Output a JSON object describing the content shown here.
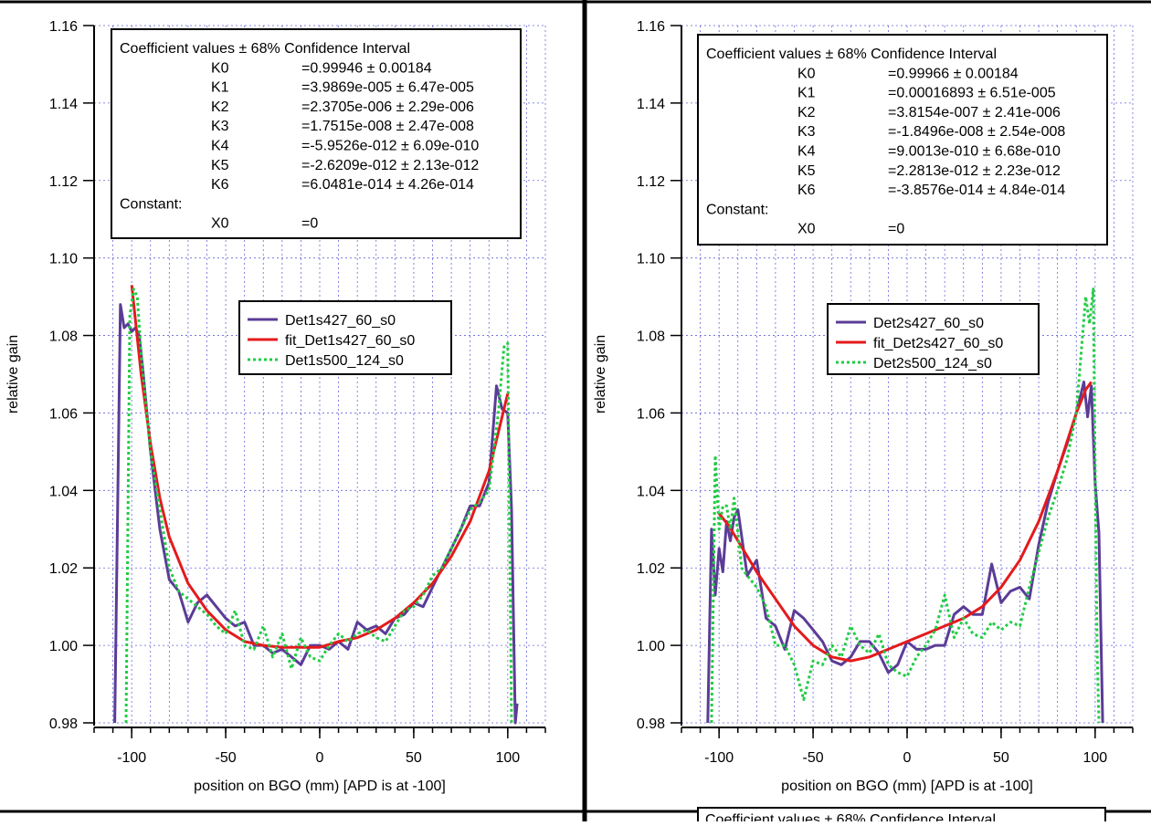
{
  "chart_data": [
    {
      "type": "line",
      "x_label": "position on BGO (mm) [APD is at -100]",
      "y_label": "relative gain",
      "xlim": [
        -120,
        120
      ],
      "ylim": [
        0.98,
        1.16
      ],
      "xticks": [
        -100,
        -50,
        0,
        50,
        100
      ],
      "xminorticks": [
        -120,
        -110,
        -100,
        -90,
        -80,
        -70,
        -60,
        -50,
        -40,
        -30,
        -20,
        -10,
        0,
        10,
        20,
        30,
        40,
        50,
        60,
        70,
        80,
        90,
        100,
        110,
        120
      ],
      "yticks": [
        0.98,
        {
          "value": 1.0,
          "label": "1.00"
        },
        1.02,
        1.04,
        1.06,
        1.08,
        {
          "value": 1.1,
          "label": "1.10"
        },
        1.12,
        1.14,
        1.16
      ],
      "grid": true,
      "fit_box": {
        "title": "Coefficient values ± 68% Confidence Interval",
        "rows": [
          {
            "name": "K0",
            "value": "=0.99946 ± 0.00184"
          },
          {
            "name": "K1",
            "value": "=3.9869e-005 ± 6.47e-005"
          },
          {
            "name": "K2",
            "value": "=2.3705e-006 ± 2.29e-006"
          },
          {
            "name": "K3",
            "value": "=1.7515e-008 ± 2.47e-008"
          },
          {
            "name": "K4",
            "value": "=-5.9526e-012 ± 6.09e-010"
          },
          {
            "name": "K5",
            "value": "=-2.6209e-012 ± 2.13e-012"
          },
          {
            "name": "K6",
            "value": "=6.0481e-014 ± 4.26e-014"
          }
        ],
        "constant_label": "Constant:",
        "constant_rows": [
          {
            "name": "X0",
            "value": "=0"
          }
        ]
      },
      "series": [
        {
          "name": "Det1s427_60_s0",
          "color": "#5b3c96",
          "line_style": "solid",
          "x": [
            -109,
            -106,
            -104,
            -102,
            -100,
            -98,
            -96,
            -94,
            -90,
            -85,
            -80,
            -75,
            -70,
            -65,
            -60,
            -55,
            -50,
            -45,
            -40,
            -35,
            -30,
            -25,
            -20,
            -15,
            -10,
            -5,
            0,
            5,
            10,
            15,
            20,
            25,
            30,
            35,
            40,
            45,
            50,
            55,
            60,
            65,
            70,
            75,
            80,
            85,
            90,
            94,
            97,
            100,
            102,
            104,
            105
          ],
          "values": [
            0.98,
            1.088,
            1.082,
            1.083,
            1.081,
            1.082,
            1.08,
            1.071,
            1.05,
            1.03,
            1.017,
            1.014,
            1.006,
            1.011,
            1.013,
            1.01,
            1.007,
            1.005,
            1.006,
            1.0,
            1.0,
            0.998,
            0.999,
            0.997,
            0.995,
            1.0,
            1.0,
            0.999,
            1.001,
            0.999,
            1.006,
            1.004,
            1.005,
            1.003,
            1.007,
            1.008,
            1.011,
            1.01,
            1.015,
            1.02,
            1.025,
            1.03,
            1.036,
            1.036,
            1.042,
            1.067,
            1.061,
            1.06,
            1.035,
            0.98,
            0.985
          ]
        },
        {
          "name": "fit_Det1s427_60_s0",
          "color": "#e41a1c",
          "line_style": "solid",
          "x": [
            -100,
            -95,
            -90,
            -85,
            -80,
            -70,
            -60,
            -50,
            -40,
            -30,
            -20,
            -10,
            0,
            10,
            20,
            30,
            40,
            50,
            60,
            70,
            80,
            90,
            100
          ],
          "values": [
            1.093,
            1.07,
            1.052,
            1.038,
            1.028,
            1.016,
            1.009,
            1.004,
            1.001,
            1.0,
            0.9995,
            0.9995,
            0.9995,
            1.001,
            1.002,
            1.004,
            1.007,
            1.011,
            1.016,
            1.023,
            1.032,
            1.045,
            1.065
          ]
        },
        {
          "name": "Det1s500_124_s0",
          "color": "#22cc44",
          "line_style": "dotted",
          "x": [
            -103,
            -101,
            -99,
            -97,
            -95,
            -90,
            -85,
            -80,
            -75,
            -70,
            -65,
            -60,
            -55,
            -50,
            -45,
            -40,
            -35,
            -30,
            -25,
            -20,
            -15,
            -10,
            -5,
            0,
            5,
            10,
            15,
            20,
            25,
            30,
            35,
            40,
            45,
            50,
            55,
            60,
            65,
            70,
            75,
            80,
            85,
            90,
            95,
            98,
            100,
            102
          ],
          "values": [
            0.98,
            1.085,
            1.092,
            1.09,
            1.075,
            1.05,
            1.035,
            1.02,
            1.014,
            1.012,
            1.01,
            1.008,
            1.005,
            1.003,
            1.009,
            1.0,
            0.999,
            1.005,
            0.997,
            1.003,
            0.994,
            1.002,
            0.997,
            0.996,
            1.0,
            1.003,
            1.001,
            1.003,
            1.004,
            1.002,
            1.001,
            1.005,
            1.009,
            1.01,
            1.013,
            1.018,
            1.02,
            1.025,
            1.03,
            1.035,
            1.037,
            1.04,
            1.06,
            1.077,
            1.078,
            0.98
          ]
        }
      ]
    },
    {
      "type": "line",
      "x_label": "position on BGO (mm) [APD is at -100]",
      "y_label": "relative gain",
      "xlim": [
        -120,
        120
      ],
      "ylim": [
        0.98,
        1.16
      ],
      "xticks": [
        -100,
        -50,
        0,
        50,
        100
      ],
      "xminorticks": [
        -120,
        -110,
        -100,
        -90,
        -80,
        -70,
        -60,
        -50,
        -40,
        -30,
        -20,
        -10,
        0,
        10,
        20,
        30,
        40,
        50,
        60,
        70,
        80,
        90,
        100,
        110,
        120
      ],
      "yticks": [
        0.98,
        {
          "value": 1.0,
          "label": "1.00"
        },
        1.02,
        1.04,
        1.06,
        1.08,
        {
          "value": 1.1,
          "label": "1.10"
        },
        1.12,
        1.14,
        1.16
      ],
      "grid": true,
      "fit_box": {
        "title": "Coefficient values ± 68% Confidence Interval",
        "rows": [
          {
            "name": "K0",
            "value": "=0.99966 ± 0.00184"
          },
          {
            "name": "K1",
            "value": "=0.00016893 ± 6.51e-005"
          },
          {
            "name": "K2",
            "value": "=3.8154e-007 ± 2.41e-006"
          },
          {
            "name": "K3",
            "value": "=-1.8496e-008 ± 2.54e-008"
          },
          {
            "name": "K4",
            "value": "=9.0013e-010 ± 6.68e-010"
          },
          {
            "name": "K5",
            "value": "=2.2813e-012 ± 2.23e-012"
          },
          {
            "name": "K6",
            "value": "=-3.8576e-014 ± 4.84e-014"
          }
        ],
        "constant_label": "Constant:",
        "constant_rows": [
          {
            "name": "X0",
            "value": "=0"
          }
        ]
      },
      "series": [
        {
          "name": "Det2s427_60_s0",
          "color": "#5b3c96",
          "line_style": "solid",
          "x": [
            -106,
            -104,
            -102,
            -100,
            -98,
            -96,
            -94,
            -92,
            -90,
            -85,
            -80,
            -75,
            -70,
            -65,
            -60,
            -55,
            -50,
            -45,
            -40,
            -35,
            -30,
            -25,
            -20,
            -15,
            -10,
            -5,
            0,
            5,
            10,
            15,
            20,
            25,
            30,
            35,
            40,
            45,
            50,
            55,
            60,
            65,
            70,
            75,
            80,
            85,
            90,
            94,
            96,
            98,
            100,
            102,
            104
          ],
          "values": [
            0.98,
            1.03,
            1.013,
            1.025,
            1.019,
            1.032,
            1.027,
            1.033,
            1.035,
            1.018,
            1.022,
            1.007,
            1.005,
            0.999,
            1.009,
            1.007,
            1.004,
            1.001,
            0.996,
            0.995,
            0.997,
            1.001,
            1.001,
            0.998,
            0.993,
            0.995,
            1.001,
            0.999,
            0.999,
            1.0,
            1.0,
            1.008,
            1.01,
            1.008,
            1.008,
            1.021,
            1.011,
            1.014,
            1.015,
            1.012,
            1.026,
            1.037,
            1.045,
            1.052,
            1.06,
            1.068,
            1.059,
            1.067,
            1.042,
            1.029,
            0.98
          ]
        },
        {
          "name": "fit_Det2s427_60_s0",
          "color": "#e41a1c",
          "line_style": "solid",
          "x": [
            -100,
            -95,
            -90,
            -80,
            -70,
            -60,
            -50,
            -40,
            -30,
            -20,
            -10,
            0,
            10,
            20,
            30,
            40,
            50,
            60,
            70,
            80,
            90,
            95,
            98
          ],
          "values": [
            1.034,
            1.031,
            1.027,
            1.019,
            1.012,
            1.005,
            1.0,
            0.997,
            0.996,
            0.997,
            0.999,
            1.001,
            1.003,
            1.005,
            1.007,
            1.01,
            1.015,
            1.022,
            1.032,
            1.045,
            1.06,
            1.066,
            1.068
          ]
        },
        {
          "name": "Det2s500_124_s0",
          "color": "#22cc44",
          "line_style": "dotted",
          "x": [
            -104,
            -102,
            -100,
            -98,
            -96,
            -94,
            -92,
            -88,
            -85,
            -80,
            -75,
            -70,
            -65,
            -60,
            -55,
            -50,
            -45,
            -40,
            -35,
            -30,
            -25,
            -20,
            -15,
            -10,
            -5,
            0,
            5,
            10,
            15,
            20,
            25,
            30,
            35,
            40,
            45,
            50,
            55,
            60,
            65,
            70,
            75,
            80,
            85,
            90,
            93,
            95,
            97,
            99,
            101,
            102
          ],
          "values": [
            0.98,
            1.049,
            1.03,
            1.036,
            1.036,
            1.03,
            1.038,
            1.02,
            1.018,
            1.015,
            1.01,
            1.0,
            1.0,
            0.995,
            0.986,
            0.996,
            0.995,
            1.0,
            0.997,
            1.005,
            1.0,
            0.998,
            1.003,
            0.995,
            0.993,
            0.992,
            0.997,
            1.0,
            1.004,
            1.013,
            1.002,
            1.007,
            1.003,
            1.002,
            1.006,
            1.004,
            1.006,
            1.005,
            1.015,
            1.024,
            1.033,
            1.04,
            1.048,
            1.06,
            1.078,
            1.09,
            1.083,
            1.092,
            1.0,
            0.98
          ]
        }
      ]
    }
  ],
  "bottom_box_title": "Coefficient values ± 68% Confidence Interval"
}
